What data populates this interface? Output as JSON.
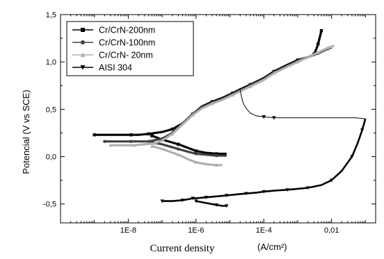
{
  "chart_data": {
    "type": "line",
    "xlabel": "Current density",
    "xlabel_unit": "(A/cm²)",
    "ylabel": "Potencial (V vs SCE)",
    "xscale": "log",
    "xlim": [
      1e-10,
      0.2
    ],
    "ylim": [
      -0.7,
      1.5
    ],
    "x_ticks": [
      {
        "value": 1e-08,
        "label": "1E-8"
      },
      {
        "value": 1e-06,
        "label": "1E-6"
      },
      {
        "value": 0.0001,
        "label": "1E-4"
      },
      {
        "value": 0.01,
        "label": "0,01"
      }
    ],
    "y_ticks": [
      {
        "value": -0.5,
        "label": "-0,5"
      },
      {
        "value": 0.0,
        "label": "0,0"
      },
      {
        "value": 0.5,
        "label": "0,5"
      },
      {
        "value": 1.0,
        "label": "1,0"
      },
      {
        "value": 1.5,
        "label": "1,5"
      }
    ],
    "legend_position": "top-left",
    "grid": false,
    "series": [
      {
        "name": "Cr/CrN-200nm",
        "color": "#000000",
        "marker": "square",
        "x": [
          1e-09,
          5e-09,
          1.2e-08,
          2e-08,
          4e-08,
          1e-07,
          2e-07,
          4e-07,
          8e-07,
          1.5e-06,
          3e-06,
          6e-06,
          1.2e-05,
          2e-05,
          4e-05,
          0.0001,
          0.0002,
          0.0005,
          0.001,
          0.002,
          0.003,
          0.0035,
          0.004,
          0.0045,
          0.005
        ],
        "y": [
          0.23,
          0.23,
          0.23,
          0.23,
          0.24,
          0.26,
          0.29,
          0.35,
          0.45,
          0.53,
          0.58,
          0.62,
          0.67,
          0.71,
          0.76,
          0.83,
          0.9,
          0.97,
          1.02,
          1.05,
          1.08,
          1.13,
          1.19,
          1.26,
          1.33
        ],
        "cathodic_x": [
          5e-08,
          1e-07,
          3e-07,
          6e-07,
          1e-06,
          2e-06,
          4e-06,
          8e-06
        ],
        "cathodic_y": [
          0.22,
          0.18,
          0.13,
          0.09,
          0.06,
          0.04,
          0.03,
          0.03
        ]
      },
      {
        "name": "Cr/CrN-100nm",
        "color": "#404040",
        "marker": "circle",
        "x": [
          2e-09,
          6e-09,
          1.2e-08,
          2e-08,
          4e-08,
          1e-07,
          2e-07,
          4e-07,
          8e-07,
          1.5e-06,
          3e-06,
          6e-06,
          1.2e-05,
          2e-05,
          4e-05,
          0.0001,
          0.0002,
          0.0005,
          0.001,
          0.002,
          0.004,
          0.006,
          0.008,
          0.01
        ],
        "y": [
          0.16,
          0.16,
          0.16,
          0.16,
          0.16,
          0.19,
          0.25,
          0.35,
          0.45,
          0.52,
          0.57,
          0.61,
          0.66,
          0.7,
          0.75,
          0.82,
          0.89,
          0.96,
          1.01,
          1.05,
          1.09,
          1.12,
          1.14,
          1.15
        ],
        "cathodic_x": [
          5e-08,
          1e-07,
          3e-07,
          6e-07,
          1e-06,
          2e-06,
          4e-06,
          8e-06
        ],
        "cathodic_y": [
          0.15,
          0.13,
          0.08,
          0.05,
          0.03,
          0.02,
          0.01,
          0.01
        ]
      },
      {
        "name": "Cr/CrN- 20nm",
        "color": "#b0b0b0",
        "marker": "triangle-up",
        "x": [
          3e-09,
          8e-09,
          1.5e-08,
          3e-08,
          6e-08,
          1e-07,
          2e-07,
          4e-07,
          8e-07,
          1.5e-06,
          3e-06,
          6e-06,
          1.2e-05,
          2e-05,
          4e-05,
          0.0001,
          0.0002,
          0.0005,
          0.001,
          0.002,
          0.004,
          0.006,
          0.008,
          0.012
        ],
        "y": [
          0.12,
          0.12,
          0.12,
          0.13,
          0.14,
          0.17,
          0.24,
          0.34,
          0.44,
          0.51,
          0.56,
          0.6,
          0.65,
          0.69,
          0.74,
          0.81,
          0.88,
          0.95,
          1.0,
          1.05,
          1.1,
          1.13,
          1.15,
          1.17
        ],
        "cathodic_x": [
          5e-08,
          1e-07,
          3e-07,
          6e-07,
          1e-06,
          2e-06,
          4e-06,
          6e-06
        ],
        "cathodic_y": [
          0.11,
          0.08,
          0.02,
          -0.03,
          -0.06,
          -0.08,
          -0.09,
          -0.09
        ]
      },
      {
        "name": "AISI 304",
        "color": "#000000",
        "marker": "triangle-down",
        "x": [
          1e-07,
          2e-07,
          4e-07,
          6e-07,
          8e-07,
          1e-06,
          2e-06,
          4e-06,
          8e-06,
          1.5e-05,
          3e-05,
          6e-05,
          0.0001,
          0.0002,
          0.0005,
          0.001,
          0.002,
          0.005,
          0.01,
          0.02,
          0.04,
          0.06,
          0.08,
          0.1
        ],
        "y": [
          -0.47,
          -0.47,
          -0.46,
          -0.45,
          -0.44,
          -0.44,
          -0.43,
          -0.42,
          -0.41,
          -0.4,
          -0.39,
          -0.38,
          -0.37,
          -0.36,
          -0.35,
          -0.34,
          -0.33,
          -0.3,
          -0.25,
          -0.15,
          0.0,
          0.15,
          0.28,
          0.4
        ],
        "cathodic_x": [
          1e-06,
          2e-06,
          4e-06,
          6e-06,
          8e-06
        ],
        "cathodic_y": [
          -0.47,
          -0.49,
          -0.51,
          -0.52,
          -0.52
        ],
        "passive_x": [
          0.1,
          0.05,
          0.02,
          0.01,
          0.005,
          0.002,
          0.001,
          0.0005,
          0.0002,
          0.0001,
          6e-05,
          4e-05,
          3e-05,
          2.5e-05,
          2.2e-05,
          2e-05
        ],
        "passive_y": [
          0.4,
          0.41,
          0.41,
          0.41,
          0.41,
          0.41,
          0.41,
          0.41,
          0.41,
          0.42,
          0.43,
          0.46,
          0.51,
          0.56,
          0.63,
          0.71
        ]
      }
    ]
  }
}
